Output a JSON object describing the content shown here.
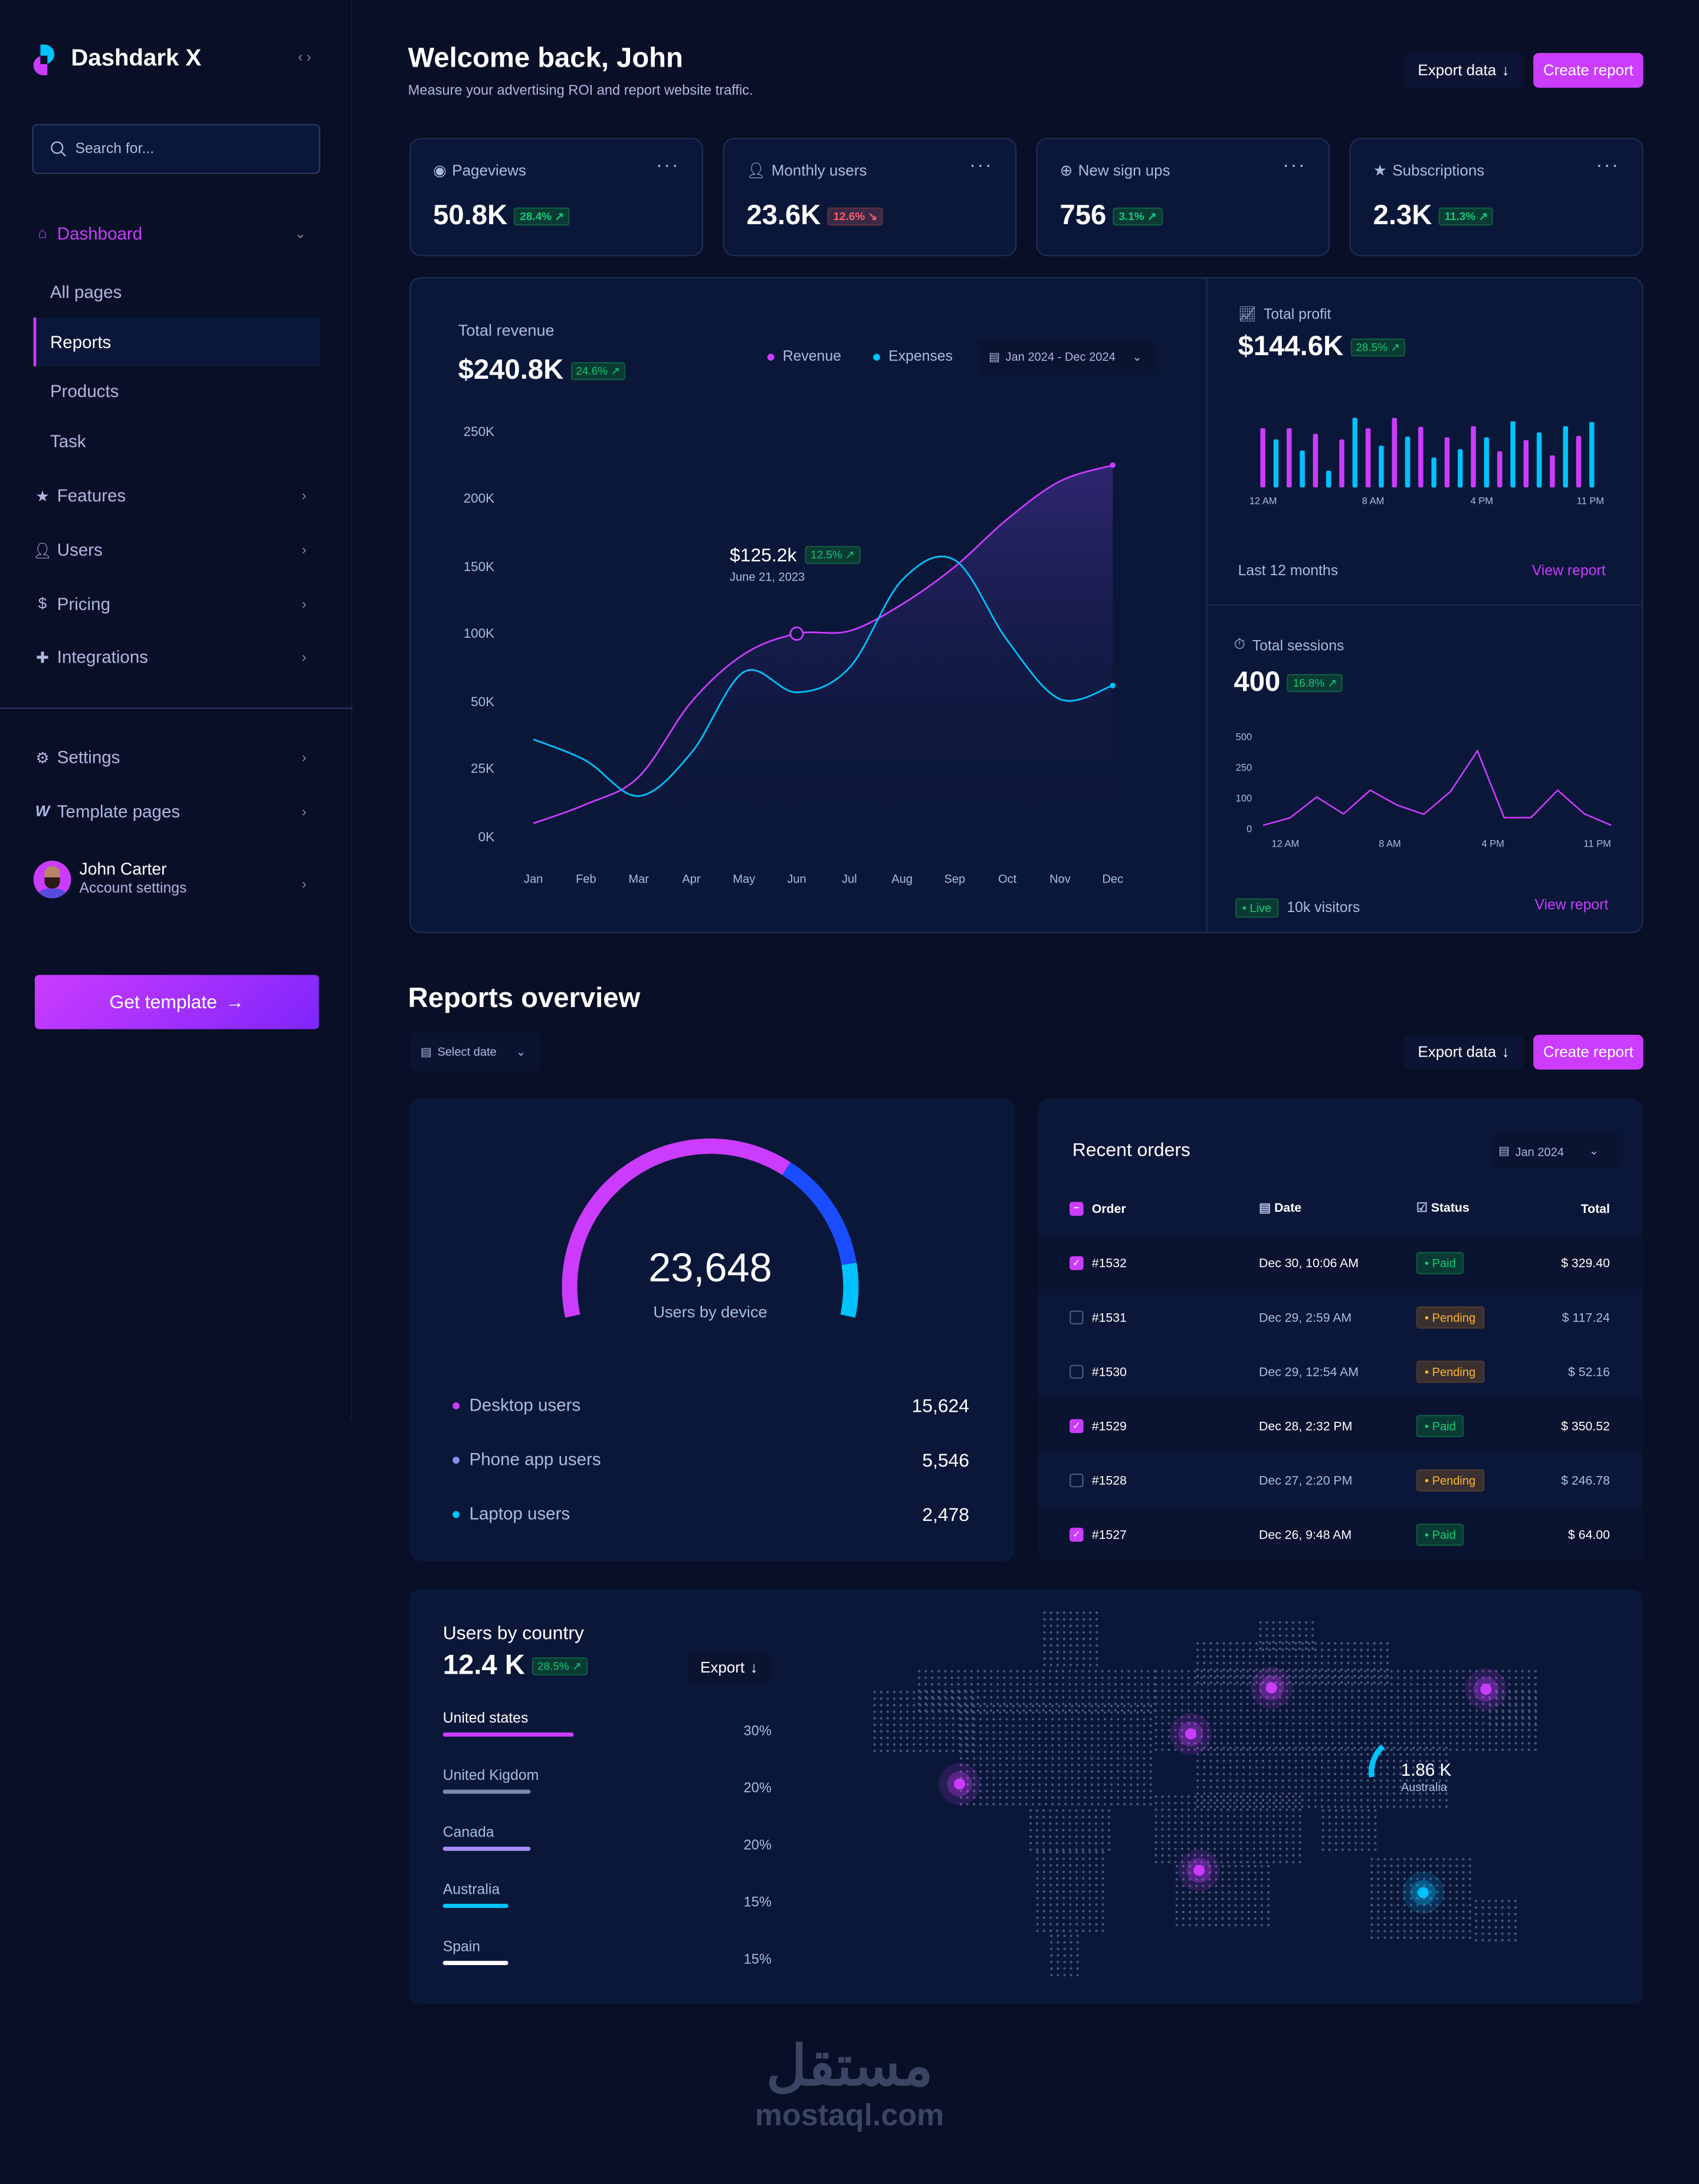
{
  "brand": {
    "name": "Dashdark X",
    "collapse_icon": "code-brackets-icon"
  },
  "colors": {
    "accent": "#cb3cff",
    "cyan": "#00c2ff",
    "blue": "#1a4dff",
    "green": "#14ca74",
    "orange": "#fdb52a",
    "red": "#ff5a65",
    "background": "#080f26",
    "card": "#0b1739"
  },
  "sidebar": {
    "search_placeholder": "Search for...",
    "dashboard": "Dashboard",
    "sub_items": [
      "All pages",
      "Reports",
      "Products",
      "Task"
    ],
    "active": "Reports",
    "items": [
      {
        "label": "Features",
        "icon": "star-icon"
      },
      {
        "label": "Users",
        "icon": "user-icon"
      },
      {
        "label": "Pricing",
        "icon": "dollar-icon"
      },
      {
        "label": "Integrations",
        "icon": "puzzle-icon"
      }
    ],
    "bottom_items": [
      {
        "label": "Settings",
        "icon": "gear-icon"
      },
      {
        "label": "Template pages",
        "icon": "webflow-icon"
      }
    ],
    "user": {
      "name": "John Carter",
      "subtitle": "Account settings"
    },
    "cta": "Get template"
  },
  "header": {
    "title": "Welcome back, John",
    "subtitle": "Measure your advertising ROI and report website traffic.",
    "export": "Export data",
    "create": "Create report"
  },
  "stats": [
    {
      "label": "Pageviews",
      "icon": "eye-icon",
      "value": "50.8K",
      "change": "28.4%",
      "trend": "up"
    },
    {
      "label": "Monthly users",
      "icon": "user-icon",
      "value": "23.6K",
      "change": "12.6%",
      "trend": "down"
    },
    {
      "label": "New sign ups",
      "icon": "plus-circle-icon",
      "value": "756",
      "change": "3.1%",
      "trend": "up"
    },
    {
      "label": "Subscriptions",
      "icon": "star-icon",
      "value": "2.3K",
      "change": "11.3%",
      "trend": "up"
    }
  ],
  "revenue": {
    "title": "Total revenue",
    "value": "$240.8K",
    "change": "24.6%",
    "legend": [
      "Revenue",
      "Expenses"
    ],
    "date_range": "Jan 2024 - Dec 2024",
    "tooltip": {
      "value": "$125.2k",
      "change": "12.5%",
      "date": "June 21, 2023"
    }
  },
  "profit": {
    "title": "Total profit",
    "value": "$144.6K",
    "change": "28.5%",
    "footer": "Last 12 months",
    "link": "View report"
  },
  "sessions": {
    "title": "Total sessions",
    "value": "400",
    "change": "16.8%",
    "live": "Live",
    "visitors": "10k visitors",
    "link": "View report"
  },
  "chart_data": [
    {
      "type": "area",
      "name": "revenue-chart",
      "categories": [
        "Jan",
        "Feb",
        "Mar",
        "Apr",
        "May",
        "Jun",
        "Jul",
        "Aug",
        "Sep",
        "Oct",
        "Nov",
        "Dec"
      ],
      "y_ticks": [
        "0K",
        "25K",
        "50K",
        "100K",
        "150K",
        "200K",
        "250K"
      ],
      "y_tick_values": [
        0,
        25,
        50,
        100,
        150,
        200,
        250
      ],
      "ylim": [
        0,
        250
      ],
      "series": [
        {
          "name": "Revenue",
          "color": "#cb3cff",
          "values": [
            5,
            12,
            22,
            50,
            85,
            100,
            102,
            122,
            150,
            185,
            213,
            225
          ]
        },
        {
          "name": "Expenses",
          "color": "#00c2ff",
          "values": [
            36,
            28,
            15,
            31,
            72,
            57,
            75,
            140,
            155,
            95,
            52,
            62
          ]
        }
      ],
      "legend": "top-right",
      "grid": false
    },
    {
      "type": "bar",
      "name": "profit-chart",
      "x_ticks": [
        "12 AM",
        "8 AM",
        "4 PM",
        "11 PM"
      ],
      "ylim": [
        0,
        100
      ],
      "values": [
        85,
        69,
        85,
        53,
        77,
        24,
        69,
        100,
        85,
        60,
        100,
        73,
        87,
        43,
        72,
        55,
        88,
        72,
        52,
        95,
        68,
        79,
        46,
        88,
        74,
        94
      ],
      "colors": [
        "#cb3cff",
        "#00c2ff"
      ]
    },
    {
      "type": "line",
      "name": "sessions-chart",
      "x_ticks": [
        "12 AM",
        "8 AM",
        "4 PM",
        "11 PM"
      ],
      "y_ticks": [
        "0",
        "100",
        "250",
        "500"
      ],
      "y_tick_values": [
        0,
        100,
        250,
        500
      ],
      "values": [
        11,
        35,
        105,
        48,
        138,
        77,
        47,
        132,
        385,
        36,
        36,
        138,
        48,
        11
      ],
      "color": "#cb3cff"
    }
  ],
  "reports": {
    "title": "Reports overview",
    "select_date": "Select date",
    "export": "Export data",
    "create": "Create report"
  },
  "devices": {
    "total": "23,648",
    "label": "Users by device",
    "items": [
      {
        "label": "Desktop users",
        "value": "15,624",
        "n": 15624,
        "color": "#cb3cff"
      },
      {
        "label": "Phone app users",
        "value": "5,546",
        "n": 5546,
        "color": "#1a4dff"
      },
      {
        "label": "Laptop users",
        "value": "2,478",
        "n": 2478,
        "color": "#00c2ff"
      }
    ]
  },
  "orders": {
    "title": "Recent orders",
    "month": "Jan 2024",
    "columns": [
      "Order",
      "Date",
      "Status",
      "Total"
    ],
    "rows": [
      {
        "id": "#1532",
        "date": "Dec 30, 10:06 AM",
        "status": "Paid",
        "total": "$ 329.40",
        "checked": true
      },
      {
        "id": "#1531",
        "date": "Dec 29, 2:59 AM",
        "status": "Pending",
        "total": "$ 117.24",
        "checked": false
      },
      {
        "id": "#1530",
        "date": "Dec 29, 12:54 AM",
        "status": "Pending",
        "total": "$ 52.16",
        "checked": false
      },
      {
        "id": "#1529",
        "date": "Dec 28, 2:32 PM",
        "status": "Paid",
        "total": "$ 350.52",
        "checked": true
      },
      {
        "id": "#1528",
        "date": "Dec 27, 2:20 PM",
        "status": "Pending",
        "total": "$ 246.78",
        "checked": false
      },
      {
        "id": "#1527",
        "date": "Dec 26, 9:48 AM",
        "status": "Paid",
        "total": "$ 64.00",
        "checked": true
      }
    ]
  },
  "countries": {
    "title": "Users by country",
    "value": "12.4 K",
    "change": "28.5%",
    "export": "Export",
    "items": [
      {
        "name": "United states",
        "pct": "30%",
        "p": 30,
        "color": "#cb3cff"
      },
      {
        "name": "United Kigdom",
        "pct": "20%",
        "p": 20,
        "color": "#7e89ac"
      },
      {
        "name": "Canada",
        "pct": "20%",
        "p": 20,
        "color": "#a78bfa"
      },
      {
        "name": "Australia",
        "pct": "15%",
        "p": 15,
        "color": "#00c2ff"
      },
      {
        "name": "Spain",
        "pct": "15%",
        "p": 15,
        "color": "#ffffff"
      }
    ],
    "map_tooltip": {
      "value": "1.86 K",
      "label": "Australia"
    }
  },
  "watermark": {
    "arabic": "مستقل",
    "latin": "mostaql.com"
  }
}
